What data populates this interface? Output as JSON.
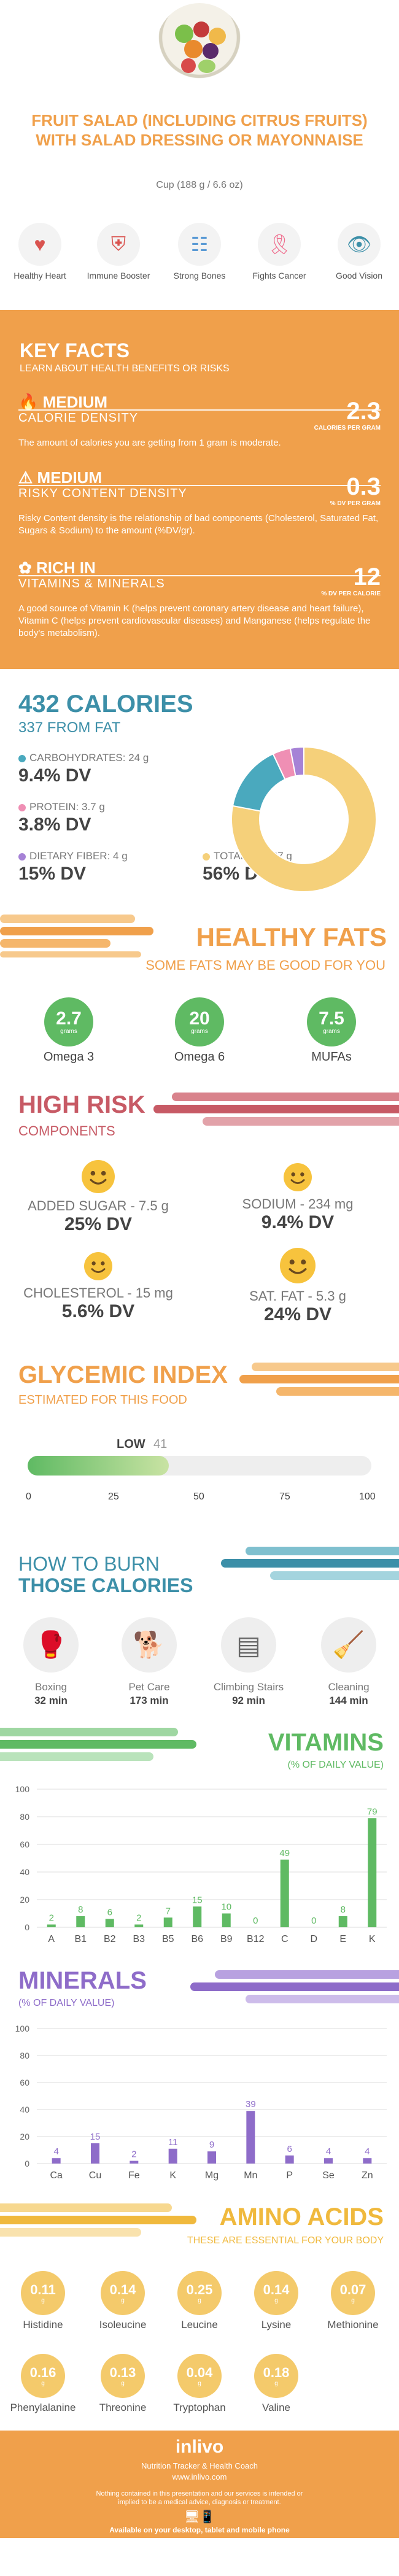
{
  "header": {
    "title": "FRUIT SALAD (INCLUDING CITRUS FRUITS) WITH SALAD DRESSING OR MAYONNAISE",
    "subtitle": "Cup (188 g / 6.6 oz)"
  },
  "benefits": [
    {
      "label": "Healthy Heart",
      "icon": "heart-pulse-icon",
      "color": "#f2f2f2"
    },
    {
      "label": "Immune Booster",
      "icon": "shield-icon",
      "color": "#f2f2f2"
    },
    {
      "label": "Strong Bones",
      "icon": "bone-icon",
      "color": "#f2f2f2"
    },
    {
      "label": "Fights Cancer",
      "icon": "ribbon-icon",
      "color": "#f2f2f2"
    },
    {
      "label": "Good Vision",
      "icon": "eye-icon",
      "color": "#f2f2f2"
    }
  ],
  "key_facts": {
    "title": "KEY FACTS",
    "subtitle": "LEARN ABOUT HEALTH BENEFITS OR RISKS",
    "facts": [
      {
        "level": "MEDIUM",
        "category": "CALORIE DENSITY",
        "value": "2.3",
        "unit": "CALORIES PER GRAM",
        "desc": "The amount of calories you are getting from 1 gram is moderate.",
        "icon": "flame-icon"
      },
      {
        "level": "MEDIUM",
        "category": "RISKY CONTENT DENSITY",
        "value": "0.3",
        "unit": "% DV PER GRAM",
        "desc": "Risky Content density is the relationship of bad components (Cholesterol, Saturated Fat, Sugars & Sodium) to the amount (%DV/gr).",
        "icon": "warning-icon"
      },
      {
        "level": "RICH IN",
        "category": "VITAMINS & MINERALS",
        "value": "12",
        "unit": "% DV PER CALORIE",
        "desc": "A good source of Vitamin K (helps prevent coronary artery disease and heart failure), Vitamin C (helps prevent cardiovascular diseases) and Manganese (helps regulate the body's metabolism).",
        "icon": "leaf-icon"
      }
    ]
  },
  "calories": {
    "title": "432 CALORIES",
    "subtitle": "337 FROM FAT",
    "nutrients": [
      {
        "label": "CARBOHYDRATES: 24 g",
        "dv": "9.4% DV",
        "color": "#f7d58a"
      },
      {
        "label": "PROTEIN: 3.7 g",
        "dv": "3.8% DV",
        "color": "#ef8fb4"
      },
      {
        "label": "DIETARY FIBER: 4 g",
        "dv": "15% DV",
        "color": "#5bb8c6"
      },
      {
        "label": "TOTAL FAT: 37 g",
        "dv": "56% DV",
        "color": "#f7d58a"
      }
    ],
    "donut": [
      {
        "name": "Fat",
        "value": 78,
        "color": "#f5d07a"
      },
      {
        "name": "Carbohydrates",
        "value": 15,
        "color": "#4aa9be"
      },
      {
        "name": "Protein",
        "value": 4,
        "color": "#ef8fb4"
      },
      {
        "name": "Fiber",
        "value": 3,
        "color": "#a682d6"
      }
    ]
  },
  "fats": {
    "title": "HEALTHY FATS",
    "subtitle": "SOME FATS MAY BE GOOD FOR YOU",
    "items": [
      {
        "value": "2.7",
        "unit": "grams",
        "name": "Omega 3"
      },
      {
        "value": "20",
        "unit": "grams",
        "name": "Omega 6"
      },
      {
        "value": "7.5",
        "unit": "grams",
        "name": "MUFAs"
      }
    ]
  },
  "risk": {
    "title": "HIGH RISK",
    "subtitle": "COMPONENTS",
    "items": [
      {
        "label": "ADDED SUGAR - 7.5 g",
        "dv": "25% DV"
      },
      {
        "label": "SODIUM - 234 mg",
        "dv": "9.4% DV"
      },
      {
        "label": "CHOLESTEROL - 15 mg",
        "dv": "5.6% DV"
      },
      {
        "label": "SAT. FAT - 5.3 g",
        "dv": "24% DV"
      }
    ]
  },
  "glycemic": {
    "title": "GLYCEMIC INDEX",
    "subtitle": "ESTIMATED FOR THIS FOOD",
    "level": "LOW",
    "value": "41",
    "value_num": 41,
    "ticks": [
      "0",
      "25",
      "50",
      "75",
      "100"
    ]
  },
  "burn": {
    "title_line1": "HOW TO BURN",
    "title_line2": "THOSE CALORIES",
    "activities": [
      {
        "name": "Boxing",
        "minutes": "32 min",
        "icon": "boxing-icon"
      },
      {
        "name": "Pet Care",
        "minutes": "173 min",
        "icon": "dog-walking-icon"
      },
      {
        "name": "Climbing Stairs",
        "minutes": "92 min",
        "icon": "stairs-icon"
      },
      {
        "name": "Cleaning",
        "minutes": "144 min",
        "icon": "mop-icon"
      }
    ]
  },
  "vitamins": {
    "title": "VITAMINS",
    "subtitle": "(% OF DAILY VALUE)",
    "chart_data": {
      "type": "bar",
      "categories": [
        "A",
        "B1",
        "B2",
        "B3",
        "B5",
        "B6",
        "B9",
        "B12",
        "C",
        "D",
        "E",
        "K"
      ],
      "values": [
        2,
        8,
        6,
        2,
        7,
        15,
        10,
        0,
        49,
        0,
        8,
        79
      ],
      "ylim": [
        0,
        100
      ],
      "yticks": [
        "0",
        "20",
        "40",
        "60",
        "80",
        "100"
      ],
      "color": "#5fba63"
    }
  },
  "minerals": {
    "title": "MINERALS",
    "subtitle": "(% OF DAILY VALUE)",
    "chart_data": {
      "type": "bar",
      "categories": [
        "Ca",
        "Cu",
        "Fe",
        "K",
        "Mg",
        "Mn",
        "P",
        "Se",
        "Zn"
      ],
      "values": [
        4,
        15,
        2,
        11,
        9,
        39,
        6,
        4,
        4
      ],
      "ylim": [
        0,
        100
      ],
      "yticks": [
        "0",
        "20",
        "40",
        "60",
        "80",
        "100"
      ],
      "color": "#8e6cc9"
    }
  },
  "amino": {
    "title": "AMINO ACIDS",
    "subtitle": "THESE ARE ESSENTIAL FOR YOUR BODY",
    "items": [
      {
        "value": "0.11",
        "unit": "g",
        "name": "Histidine"
      },
      {
        "value": "0.14",
        "unit": "g",
        "name": "Isoleucine"
      },
      {
        "value": "0.25",
        "unit": "g",
        "name": "Leucine"
      },
      {
        "value": "0.14",
        "unit": "g",
        "name": "Lysine"
      },
      {
        "value": "0.07",
        "unit": "g",
        "name": "Methionine"
      },
      {
        "value": "0.16",
        "unit": "g",
        "name": "Phenylalanine"
      },
      {
        "value": "0.13",
        "unit": "g",
        "name": "Threonine"
      },
      {
        "value": "0.04",
        "unit": "g",
        "name": "Tryptophan"
      },
      {
        "value": "0.18",
        "unit": "g",
        "name": "Valine"
      }
    ]
  },
  "footer": {
    "brand": "inlivo",
    "tagline": "Nutrition Tracker & Health Coach",
    "url": "www.inlivo.com",
    "disclaimer": "Nothing contained in this presentation and our services is intended or implied to be a medical advice, diagnosis or treatment.",
    "available": "Available on your desktop, tablet and mobile phone"
  }
}
